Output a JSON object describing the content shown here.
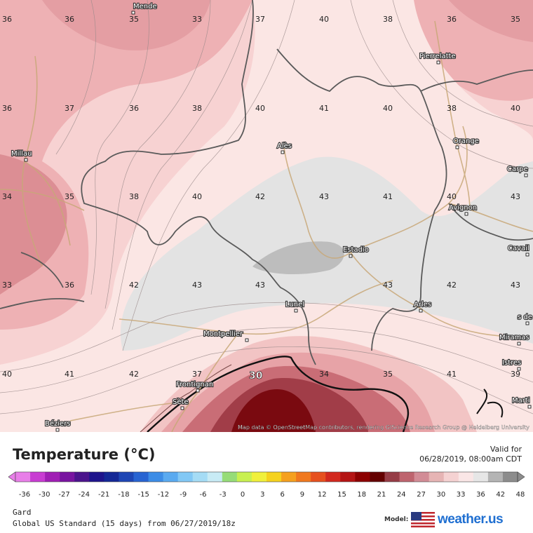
{
  "header": {
    "title": "Temperature (°C)",
    "valid_label": "Valid for",
    "valid_time": "06/28/2019, 08:00am CDT"
  },
  "legend": {
    "ticks": [
      "-36",
      "-30",
      "-27",
      "-24",
      "-21",
      "-18",
      "-15",
      "-12",
      "-9",
      "-6",
      "-3",
      "0",
      "3",
      "6",
      "9",
      "12",
      "15",
      "18",
      "21",
      "24",
      "27",
      "30",
      "33",
      "36",
      "42",
      "48"
    ],
    "colors": [
      "#e87ee8",
      "#c83cd2",
      "#a01eb4",
      "#7814a0",
      "#4b148c",
      "#1e148c",
      "#142896",
      "#1e46b4",
      "#2864d2",
      "#3c8ce6",
      "#5aaaf0",
      "#82c8f5",
      "#a5dcf5",
      "#c8ebf5",
      "#96dc78",
      "#c8f050",
      "#f0f03c",
      "#f5d21e",
      "#f5a01e",
      "#f0781e",
      "#e6501e",
      "#d2281e",
      "#b41414",
      "#8c0000",
      "#640000",
      "#963c46",
      "#be646e",
      "#d28c96",
      "#e6b4b4",
      "#f5d2d2",
      "#fae6e6",
      "#e6e6e6",
      "#b4b4b4",
      "#8c8c8c"
    ]
  },
  "footer": {
    "region": "Gard",
    "model_run": "Global US Standard (15 days) from 06/27/2019/18z",
    "model_label": "Model:",
    "brand": "weather.us"
  },
  "map": {
    "attribution": "Map data © OpenStreetMap contributors, rendering GIScience Research Group @ Heidelberg University",
    "cities": [
      {
        "name": "Mende"
      },
      {
        "name": "Millau"
      },
      {
        "name": "Alès"
      },
      {
        "name": "Pierrelatte"
      },
      {
        "name": "Orange"
      },
      {
        "name": "Carpe"
      },
      {
        "name": "Avignon"
      },
      {
        "name": "Cavail"
      },
      {
        "name": "Estadio"
      },
      {
        "name": "Arles"
      },
      {
        "name": "Lunel"
      },
      {
        "name": "Montpellier"
      },
      {
        "name": "Frontignan"
      },
      {
        "name": "Sète"
      },
      {
        "name": "Béziers"
      },
      {
        "name": "Miramas"
      },
      {
        "name": "Istres"
      },
      {
        "name": "Marti"
      },
      {
        "name": "s de f"
      }
    ],
    "contour_label": "30",
    "values": [
      {
        "v": "36"
      },
      {
        "v": "36"
      },
      {
        "v": "35"
      },
      {
        "v": "33"
      },
      {
        "v": "37"
      },
      {
        "v": "40"
      },
      {
        "v": "38"
      },
      {
        "v": "36"
      },
      {
        "v": "35"
      },
      {
        "v": "36"
      },
      {
        "v": "37"
      },
      {
        "v": "36"
      },
      {
        "v": "38"
      },
      {
        "v": "40"
      },
      {
        "v": "41"
      },
      {
        "v": "40"
      },
      {
        "v": "38"
      },
      {
        "v": "40"
      },
      {
        "v": "34"
      },
      {
        "v": "35"
      },
      {
        "v": "38"
      },
      {
        "v": "40"
      },
      {
        "v": "42"
      },
      {
        "v": "43"
      },
      {
        "v": "41"
      },
      {
        "v": "40"
      },
      {
        "v": "43"
      },
      {
        "v": "33"
      },
      {
        "v": "36"
      },
      {
        "v": "42"
      },
      {
        "v": "43"
      },
      {
        "v": "43"
      },
      {
        "v": "43"
      },
      {
        "v": "42"
      },
      {
        "v": "43"
      },
      {
        "v": "40"
      },
      {
        "v": "41"
      },
      {
        "v": "42"
      },
      {
        "v": "37"
      },
      {
        "v": "34"
      },
      {
        "v": "35"
      },
      {
        "v": "41"
      },
      {
        "v": "39"
      }
    ]
  }
}
